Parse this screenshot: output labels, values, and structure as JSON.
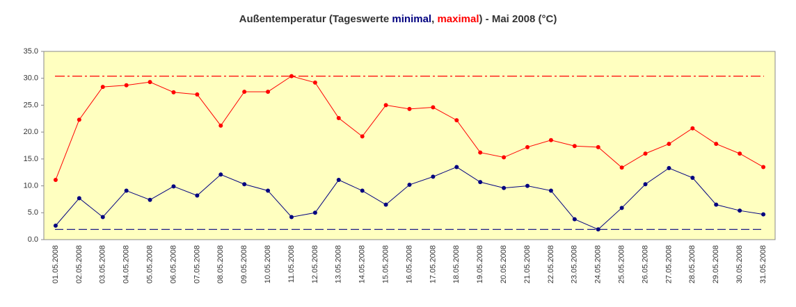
{
  "chart_data": {
    "type": "line",
    "title_parts": [
      "Außentemperatur (Tageswerte ",
      "minimal",
      ", ",
      "maximal",
      ") - Mai 2008 (°C)"
    ],
    "categories": [
      "01.05.2008",
      "02.05.2008",
      "03.05.2008",
      "04.05.2008",
      "05.05.2008",
      "06.05.2008",
      "07.05.2008",
      "08.05.2008",
      "09.05.2008",
      "10.05.2008",
      "11.05.2008",
      "12.05.2008",
      "13.05.2008",
      "14.05.2008",
      "15.05.2008",
      "16.05.2008",
      "17.05.2008",
      "18.05.2008",
      "19.05.2008",
      "20.05.2008",
      "21.05.2008",
      "22.05.2008",
      "23.05.2008",
      "24.05.2008",
      "25.05.2008",
      "26.05.2008",
      "27.05.2008",
      "28.05.2008",
      "29.05.2008",
      "30.05.2008",
      "31.05.2008"
    ],
    "series": [
      {
        "name": "maximal",
        "color": "#ff0000",
        "values": [
          11.1,
          22.3,
          28.4,
          28.7,
          29.3,
          27.4,
          27.0,
          21.2,
          27.5,
          27.5,
          30.4,
          29.2,
          22.6,
          19.2,
          25.0,
          24.3,
          24.6,
          22.2,
          16.2,
          15.3,
          17.2,
          18.5,
          17.4,
          17.2,
          13.4,
          16.0,
          17.8,
          20.7,
          17.8,
          16.0,
          13.5
        ]
      },
      {
        "name": "minimal",
        "color": "#000080",
        "values": [
          2.6,
          7.7,
          4.2,
          9.1,
          7.4,
          9.9,
          8.2,
          12.1,
          10.3,
          9.1,
          4.2,
          5.0,
          11.1,
          9.1,
          6.5,
          10.2,
          11.7,
          13.5,
          10.7,
          9.6,
          10.0,
          9.1,
          3.8,
          1.9,
          5.9,
          10.3,
          13.3,
          11.5,
          6.5,
          5.4,
          4.7
        ]
      }
    ],
    "ylim": [
      0,
      35
    ],
    "yticks": [
      {
        "value": 0,
        "label": "0.0"
      },
      {
        "value": 5,
        "label": "5.0"
      },
      {
        "value": 10,
        "label": "10.0"
      },
      {
        "value": 15,
        "label": "15.0"
      },
      {
        "value": 20,
        "label": "20.0"
      },
      {
        "value": 25,
        "label": "25.0"
      },
      {
        "value": 30,
        "label": "30.0"
      },
      {
        "value": 35,
        "label": "35.0"
      }
    ],
    "background": "#ffffc0"
  }
}
